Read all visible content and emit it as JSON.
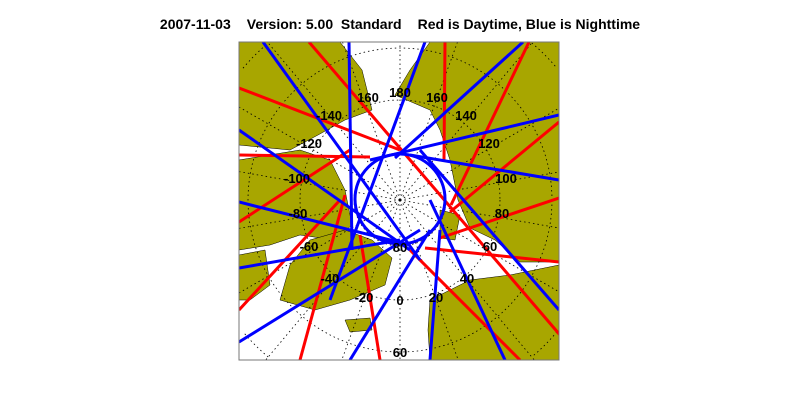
{
  "title": {
    "date": "2007-11-03",
    "version": "Version: 5.00  Standard",
    "legend_text": "Red is Daytime, Blue is Nighttime"
  },
  "map": {
    "projection": "north polar stereographic",
    "colors": {
      "land": "#a8a600",
      "ocean": "#ffffff",
      "day_track": "#ff0000",
      "night_track": "#0000ff",
      "grid": "#000000"
    },
    "longitude_labels": [
      "180",
      "160",
      "160",
      "-140",
      "140",
      "-120",
      "120",
      "-100",
      "100",
      "-80",
      "80",
      "-60",
      "60",
      "-40",
      "40",
      "-20",
      "20",
      "0"
    ],
    "latitude_labels": [
      "80",
      "60"
    ]
  }
}
